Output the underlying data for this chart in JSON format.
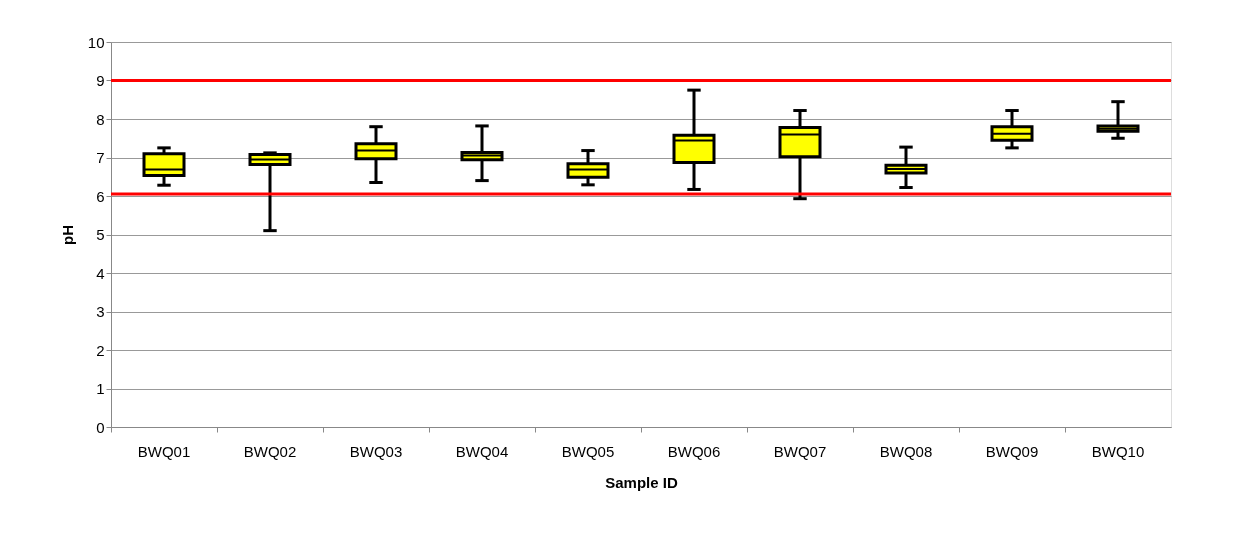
{
  "chart_data": {
    "type": "box",
    "xlabel": "Sample ID",
    "ylabel": "pH",
    "categories": [
      "BWQ01",
      "BWQ02",
      "BWQ03",
      "BWQ04",
      "BWQ05",
      "BWQ06",
      "BWQ07",
      "BWQ08",
      "BWQ09",
      "BWQ10"
    ],
    "boxes": [
      {
        "low": 6.28,
        "q1": 6.53,
        "median": 6.69,
        "q3": 7.1,
        "high": 7.25
      },
      {
        "low": 5.1,
        "q1": 6.82,
        "median": 6.95,
        "q3": 7.08,
        "high": 7.12
      },
      {
        "low": 6.35,
        "q1": 6.97,
        "median": 7.18,
        "q3": 7.36,
        "high": 7.8
      },
      {
        "low": 6.4,
        "q1": 6.94,
        "median": 7.05,
        "q3": 7.13,
        "high": 7.82
      },
      {
        "low": 6.29,
        "q1": 6.49,
        "median": 6.69,
        "q3": 6.84,
        "high": 7.18
      },
      {
        "low": 6.17,
        "q1": 6.87,
        "median": 7.44,
        "q3": 7.58,
        "high": 8.75
      },
      {
        "low": 5.93,
        "q1": 7.02,
        "median": 7.6,
        "q3": 7.78,
        "high": 8.22
      },
      {
        "low": 6.22,
        "q1": 6.6,
        "median": 6.7,
        "q3": 6.8,
        "high": 7.27
      },
      {
        "low": 7.25,
        "q1": 7.45,
        "median": 7.62,
        "q3": 7.8,
        "high": 8.22
      },
      {
        "low": 7.5,
        "q1": 7.68,
        "median": 7.75,
        "q3": 7.82,
        "high": 8.45
      }
    ],
    "color": "#ffff00",
    "ylim": [
      0,
      10
    ],
    "yticks": [
      0,
      1,
      2,
      3,
      4,
      5,
      6,
      7,
      8,
      9,
      10
    ],
    "grid": "y",
    "ref_lines": [
      {
        "axis": "y",
        "value": 9,
        "color": "#ff0000"
      },
      {
        "axis": "y",
        "value": 6.05,
        "color": "#ff0000"
      }
    ]
  }
}
